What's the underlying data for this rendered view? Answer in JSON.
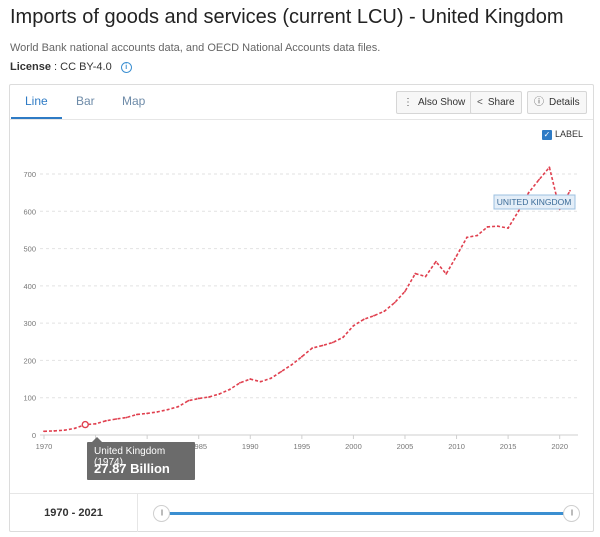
{
  "page": {
    "title": "Imports of goods and services (current LCU) - United Kingdom",
    "source": "World Bank national accounts data, and OECD National Accounts data files.",
    "license_label": "License",
    "license_value": ": CC BY-4.0",
    "info_icon": "i"
  },
  "tabs": [
    {
      "label": "Line",
      "active": true
    },
    {
      "label": "Bar",
      "active": false
    },
    {
      "label": "Map",
      "active": false
    }
  ],
  "toolbar": {
    "also_show_label": "Also Show",
    "share_label": "Share",
    "details_label": "Details"
  },
  "label_toggle": {
    "label": "LABEL",
    "checked": true,
    "check_glyph": "✓"
  },
  "series_label": "UNITED KINGDOM",
  "tooltip": {
    "name": "United Kingdom (1974)",
    "value": "27.87 Billion"
  },
  "footer": {
    "range_label": "1970 - 2021",
    "handle_glyph": "|||"
  },
  "colors": {
    "accent": "#2e7bc5",
    "line": "#e0404f",
    "slider": "#3b8fd1"
  },
  "chart_data": {
    "type": "line",
    "title": "Imports of goods and services (current LCU) - United Kingdom",
    "xlabel": "",
    "ylabel": "",
    "units": "Billion LCU",
    "xlim": [
      1970,
      2021
    ],
    "ylim": [
      0,
      700
    ],
    "yticks": [
      "0",
      "100",
      "200",
      "300",
      "400",
      "500",
      "600",
      "700"
    ],
    "xticks": [
      "1970",
      "1975",
      "1980",
      "1985",
      "1990",
      "1995",
      "2000",
      "2005",
      "2010",
      "2015",
      "2020"
    ],
    "series": [
      {
        "name": "United Kingdom",
        "x": [
          1970,
          1971,
          1972,
          1973,
          1974,
          1975,
          1976,
          1977,
          1978,
          1979,
          1980,
          1981,
          1982,
          1983,
          1984,
          1985,
          1986,
          1987,
          1988,
          1989,
          1990,
          1991,
          1992,
          1993,
          1994,
          1995,
          1996,
          1997,
          1998,
          1999,
          2000,
          2001,
          2002,
          2003,
          2004,
          2005,
          2006,
          2007,
          2008,
          2009,
          2010,
          2011,
          2012,
          2013,
          2014,
          2015,
          2016,
          2017,
          2018,
          2019,
          2020,
          2021
        ],
        "values": [
          10,
          11,
          13,
          18,
          27.87,
          30,
          38,
          43,
          47,
          55,
          58,
          62,
          68,
          76,
          92,
          98,
          102,
          110,
          122,
          140,
          150,
          143,
          152,
          170,
          188,
          210,
          233,
          240,
          248,
          262,
          293,
          310,
          320,
          332,
          355,
          385,
          433,
          425,
          465,
          432,
          480,
          530,
          535,
          558,
          560,
          555,
          600,
          650,
          685,
          718,
          605,
          655
        ]
      }
    ],
    "highlight": {
      "x": 1974,
      "y": 27.87
    }
  }
}
